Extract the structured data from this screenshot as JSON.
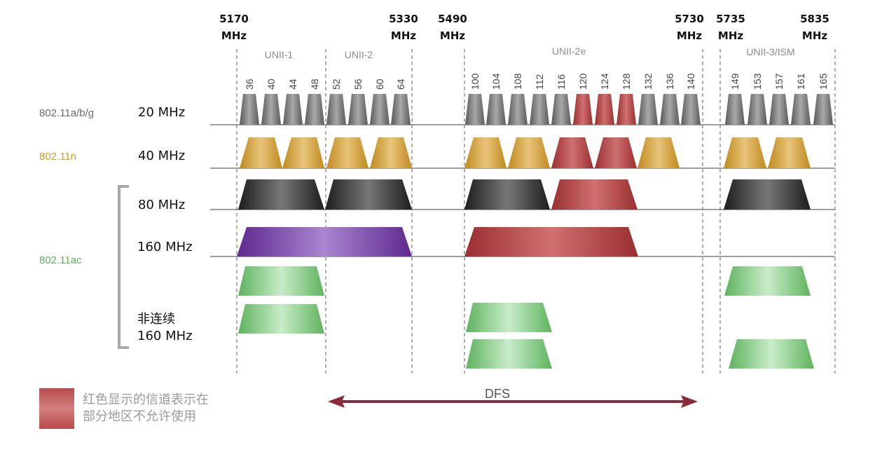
{
  "frequencies": [
    {
      "value": "5170",
      "unit": "MHz"
    },
    {
      "value": "5330",
      "unit": "MHz"
    },
    {
      "value": "5490",
      "unit": "MHz"
    },
    {
      "value": "5730",
      "unit": "MHz"
    },
    {
      "value": "5735",
      "unit": "MHz"
    },
    {
      "value": "5835",
      "unit": "MHz"
    }
  ],
  "bands": [
    "UNII-1",
    "UNII-2",
    "UNII-2e",
    "UNII-3/ISM"
  ],
  "channels": {
    "unii12": [
      "36",
      "40",
      "44",
      "48",
      "52",
      "56",
      "60",
      "64"
    ],
    "unii2e": [
      "100",
      "104",
      "108",
      "112",
      "116",
      "120",
      "124",
      "128",
      "132",
      "136",
      "140"
    ],
    "unii3": [
      "149",
      "153",
      "157",
      "161",
      "165"
    ]
  },
  "restricted_channels": [
    "120",
    "124",
    "128"
  ],
  "standards": [
    {
      "label": "802.11a/b/g",
      "color": "#6b6b6b"
    },
    {
      "label": "802.11n",
      "color": "#c8a02a"
    },
    {
      "label": "802.11ac",
      "color": "#5fae5f"
    }
  ],
  "widths": {
    "w20": "20 MHz",
    "w40": "40 MHz",
    "w80": "80 MHz",
    "w160": "160 MHz",
    "nc_line1": "非连续",
    "nc_line2": "160 MHz"
  },
  "dfs_label": "DFS",
  "legend": {
    "line1": "红色显示的信道表示在",
    "line2": "部分地区不允许使用"
  },
  "colors": {
    "gray": "#7a7a7a",
    "gold": "#c99a2e",
    "red": "#b04545",
    "black": "#333333",
    "purple": "#7a45a8",
    "green": "#6cc06c",
    "dfs_arrow": "#8b2a3a"
  }
}
